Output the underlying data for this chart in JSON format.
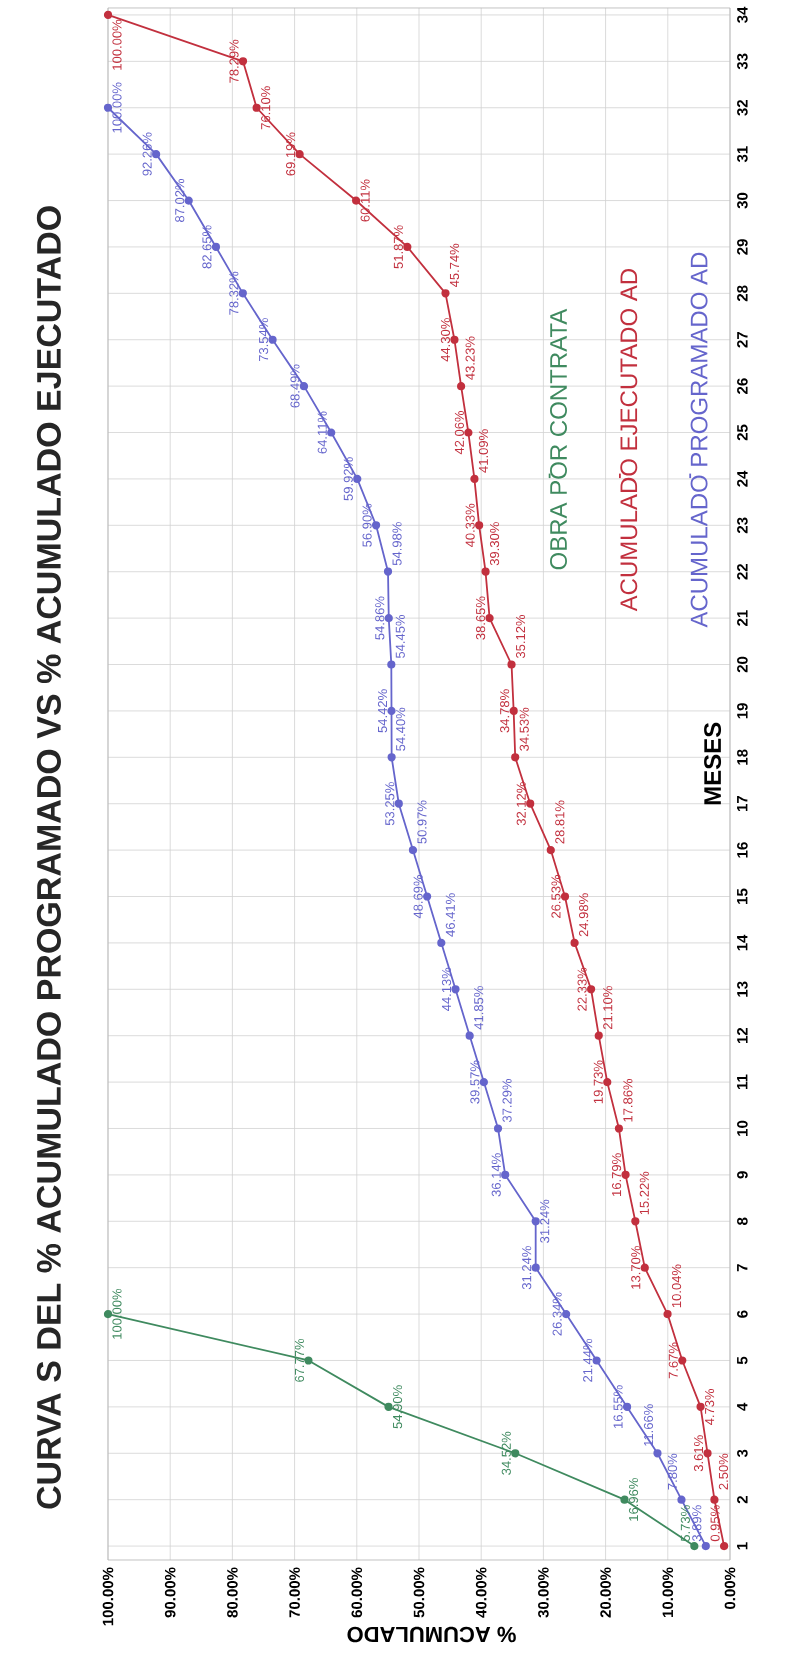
{
  "chart_data": {
    "type": "line",
    "title": "CURVA S DEL % ACUMULADO PROGRAMADO VS % ACUMULADO EJECUTADO",
    "xlabel": "% ACUMULADO",
    "ylabel": "MESES",
    "series": [
      {
        "name": "OBRA POR CONTRATA",
        "color": "#3f8a5f",
        "x": [
          5.73,
          16.96,
          34.52,
          54.9,
          67.77,
          100.0
        ],
        "values": [
          1,
          2,
          3,
          4,
          5,
          6
        ]
      },
      {
        "name": "ACUMULADO EJECUTADO AD",
        "color": "#c2303e",
        "x": [
          0.95,
          2.5,
          3.61,
          4.73,
          7.67,
          10.04,
          13.7,
          15.22,
          16.79,
          17.86,
          19.73,
          21.1,
          22.33,
          24.98,
          26.53,
          28.81,
          32.12,
          34.53,
          34.78,
          35.12,
          38.65,
          39.3,
          40.33,
          41.09,
          42.06,
          43.23,
          44.3,
          45.74,
          51.87,
          60.11,
          69.19,
          76.1,
          78.29,
          100.0
        ],
        "values": [
          1,
          2,
          3,
          4,
          5,
          6,
          7,
          8,
          9,
          10,
          11,
          12,
          13,
          14,
          15,
          16,
          17,
          18,
          19,
          20,
          21,
          22,
          23,
          24,
          25,
          26,
          27,
          28,
          29,
          30,
          31,
          32,
          33,
          34
        ]
      },
      {
        "name": "ACUMULADO PROGRAMADO AD",
        "color": "#6565cc",
        "x": [
          3.89,
          7.8,
          11.66,
          16.55,
          21.44,
          26.34,
          31.24,
          31.24,
          36.14,
          37.29,
          39.57,
          41.85,
          44.13,
          46.41,
          48.69,
          50.97,
          53.25,
          54.4,
          54.42,
          54.45,
          54.86,
          54.98,
          56.9,
          59.92,
          64.11,
          68.49,
          73.54,
          78.32,
          82.65,
          87.02,
          92.26,
          100.0
        ],
        "values": [
          1,
          2,
          3,
          4,
          5,
          6,
          7,
          8,
          9,
          10,
          11,
          12,
          13,
          14,
          15,
          16,
          17,
          18,
          19,
          20,
          21,
          22,
          23,
          24,
          25,
          26,
          27,
          28,
          29,
          30,
          31,
          32
        ]
      }
    ],
    "annotations": [
      {
        "text": "5.73%",
        "x": 5.73,
        "y": 1
      },
      {
        "text": "16.96%",
        "x": 16.96,
        "y": 2
      },
      {
        "text": "34.52%",
        "x": 34.52,
        "y": 3
      },
      {
        "text": "54.90%",
        "x": 54.9,
        "y": 4
      },
      {
        "text": "67.77%",
        "x": 67.77,
        "y": 5
      },
      {
        "text": "100.00%",
        "x": 100.0,
        "y": 6
      },
      {
        "text": "0.95%",
        "x": 0.95,
        "y": 1
      },
      {
        "text": "2.50%",
        "x": 2.5,
        "y": 2
      },
      {
        "text": "3.61%",
        "x": 3.61,
        "y": 3
      },
      {
        "text": "4.73%",
        "x": 4.73,
        "y": 4
      },
      {
        "text": "7.67%",
        "x": 7.67,
        "y": 5
      },
      {
        "text": "10.04%",
        "x": 10.04,
        "y": 6
      },
      {
        "text": "13.70%",
        "x": 13.7,
        "y": 7
      },
      {
        "text": "15.22%",
        "x": 15.22,
        "y": 8
      },
      {
        "text": "16.79%",
        "x": 16.79,
        "y": 9
      },
      {
        "text": "17.86%",
        "x": 17.86,
        "y": 10
      },
      {
        "text": "19.73%",
        "x": 19.73,
        "y": 11
      },
      {
        "text": "21.10%",
        "x": 21.1,
        "y": 12
      },
      {
        "text": "22.33%",
        "x": 22.33,
        "y": 13
      },
      {
        "text": "24.98%",
        "x": 24.98,
        "y": 14
      },
      {
        "text": "26.53%",
        "x": 26.53,
        "y": 15
      },
      {
        "text": "28.81%",
        "x": 28.81,
        "y": 16
      },
      {
        "text": "32.12%",
        "x": 32.12,
        "y": 17
      },
      {
        "text": "34.53%",
        "x": 34.53,
        "y": 18
      },
      {
        "text": "34.78%",
        "x": 34.78,
        "y": 19
      },
      {
        "text": "35.12%",
        "x": 35.12,
        "y": 20
      },
      {
        "text": "38.65%",
        "x": 38.65,
        "y": 21
      },
      {
        "text": "39.30%",
        "x": 39.3,
        "y": 22
      },
      {
        "text": "40.33%",
        "x": 40.33,
        "y": 23
      },
      {
        "text": "41.09%",
        "x": 41.09,
        "y": 24
      },
      {
        "text": "42.06%",
        "x": 42.06,
        "y": 25
      },
      {
        "text": "43.23%",
        "x": 43.23,
        "y": 26
      },
      {
        "text": "44.30%",
        "x": 44.3,
        "y": 27
      },
      {
        "text": "45.74%",
        "x": 45.74,
        "y": 28
      },
      {
        "text": "51.87%",
        "x": 51.87,
        "y": 29
      },
      {
        "text": "60.11%",
        "x": 60.11,
        "y": 30
      },
      {
        "text": "69.19%",
        "x": 69.19,
        "y": 31
      },
      {
        "text": "76.10%",
        "x": 76.1,
        "y": 32
      },
      {
        "text": "78.29%",
        "x": 78.29,
        "y": 33
      },
      {
        "text": "100.00%",
        "x": 100.0,
        "y": 34
      },
      {
        "text": "3.89%",
        "x": 3.89,
        "y": 1
      },
      {
        "text": "7.80%",
        "x": 7.8,
        "y": 2
      },
      {
        "text": "11.66%",
        "x": 11.66,
        "y": 3
      },
      {
        "text": "16.55%",
        "x": 16.55,
        "y": 4
      },
      {
        "text": "21.44%",
        "x": 21.44,
        "y": 5
      },
      {
        "text": "26.34%",
        "x": 26.34,
        "y": 6
      },
      {
        "text": "31.24%",
        "x": 31.24,
        "y": 7
      },
      {
        "text": "31.24%",
        "x": 31.24,
        "y": 8
      },
      {
        "text": "36.14%",
        "x": 36.14,
        "y": 9
      },
      {
        "text": "37.29%",
        "x": 37.29,
        "y": 10
      },
      {
        "text": "39.57%",
        "x": 39.57,
        "y": 11
      },
      {
        "text": "41.85%",
        "x": 41.85,
        "y": 12
      },
      {
        "text": "44.13%",
        "x": 44.13,
        "y": 13
      },
      {
        "text": "46.41%",
        "x": 46.41,
        "y": 14
      },
      {
        "text": "48.69%",
        "x": 48.69,
        "y": 15
      },
      {
        "text": "50.97%",
        "x": 50.97,
        "y": 16
      },
      {
        "text": "53.25%",
        "x": 53.25,
        "y": 17
      },
      {
        "text": "54.40%",
        "x": 54.4,
        "y": 18
      },
      {
        "text": "54.42%",
        "x": 54.42,
        "y": 19
      },
      {
        "text": "54.45%",
        "x": 54.45,
        "y": 20
      },
      {
        "text": "54.86%",
        "x": 54.86,
        "y": 21
      },
      {
        "text": "54.98%",
        "x": 54.98,
        "y": 22
      },
      {
        "text": "56.90%",
        "x": 56.9,
        "y": 23
      },
      {
        "text": "59.92%",
        "x": 59.92,
        "y": 24
      },
      {
        "text": "64.11%",
        "x": 64.11,
        "y": 25
      },
      {
        "text": "68.49%",
        "x": 68.49,
        "y": 26
      },
      {
        "text": "73.54%",
        "x": 73.54,
        "y": 27
      },
      {
        "text": "78.32%",
        "x": 78.32,
        "y": 28
      },
      {
        "text": "82.65%",
        "x": 82.65,
        "y": 29
      },
      {
        "text": "87.02%",
        "x": 87.02,
        "y": 30
      },
      {
        "text": "92.26%",
        "x": 92.26,
        "y": 31
      },
      {
        "text": "100.00%",
        "x": 100.0,
        "y": 32
      }
    ],
    "xlim": [
      100,
      0
    ],
    "xticks": [
      {
        "value": 100,
        "label": "100.00%"
      },
      {
        "value": 90,
        "label": "90.00%"
      },
      {
        "value": 80,
        "label": "80.00%"
      },
      {
        "value": 70,
        "label": "70.00%"
      },
      {
        "value": 60,
        "label": "60.00%"
      },
      {
        "value": 50,
        "label": "50.00%"
      },
      {
        "value": 40,
        "label": "40.00%"
      },
      {
        "value": 30,
        "label": "30.00%"
      },
      {
        "value": 20,
        "label": "20.00%"
      },
      {
        "value": 10,
        "label": "10.00%"
      },
      {
        "value": 0,
        "label": "0.00%"
      }
    ],
    "ylim": [
      0.7,
      34.15
    ],
    "yticks": [
      1,
      2,
      3,
      4,
      5,
      6,
      7,
      8,
      9,
      10,
      11,
      12,
      13,
      14,
      15,
      16,
      17,
      18,
      19,
      20,
      21,
      22,
      23,
      24,
      25,
      26,
      27,
      28,
      29,
      30,
      31,
      32,
      33,
      34
    ],
    "grid": true,
    "legend": "top right",
    "marker": "circle",
    "line_style": "solid"
  }
}
